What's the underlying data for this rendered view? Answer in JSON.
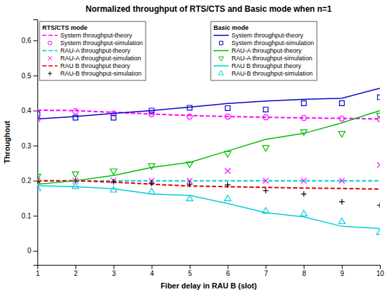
{
  "chart_data": {
    "type": "line",
    "title": "Normalized throughput of RTS/CTS and Basic mode when n=1",
    "xlabel": "Fiber delay in RAU B (slot)",
    "ylabel": "Throughout",
    "xlim": [
      1,
      10
    ],
    "ylim": [
      -0.04,
      0.66
    ],
    "xticks": [
      1,
      2,
      3,
      4,
      5,
      6,
      7,
      8,
      9,
      10
    ],
    "yticks": [
      0,
      0.1,
      0.2,
      0.3,
      0.4,
      0.5,
      0.6
    ],
    "grid": false,
    "x": [
      1,
      2,
      3,
      4,
      5,
      6,
      7,
      8,
      9,
      10
    ],
    "series": [
      {
        "name": "System throughput-theory",
        "group": "RTS/CTS mode",
        "type": "line",
        "line_style": "dashed",
        "color": "#FF00FF",
        "values": [
          0.401,
          0.4,
          0.395,
          0.39,
          0.386,
          0.383,
          0.381,
          0.379,
          0.378,
          0.376
        ]
      },
      {
        "name": "System throughput-simulation",
        "group": "RTS/CTS mode",
        "type": "scatter",
        "marker": "circle",
        "color": "#FF00FF",
        "values": [
          0.375,
          0.398,
          0.392,
          0.39,
          0.383,
          0.383,
          0.381,
          0.379,
          0.377,
          0.376
        ]
      },
      {
        "name": "RAU-A throughput-theory",
        "group": "RTS/CTS mode",
        "type": "line",
        "line_style": "dashed",
        "color": "#00CCCC",
        "values": [
          0.2,
          0.2,
          0.2,
          0.2,
          0.2,
          0.2,
          0.2,
          0.2,
          0.2,
          0.2
        ]
      },
      {
        "name": "RAU-A throughput-simulation",
        "group": "RTS/CTS mode",
        "type": "scatter",
        "marker": "x",
        "color": "#FF00FF",
        "values": [
          0.2,
          0.2,
          0.2,
          0.2,
          0.2,
          0.228,
          0.2,
          0.2,
          0.2,
          0.245
        ]
      },
      {
        "name": "RAU B throughput theory",
        "group": "RTS/CTS mode",
        "type": "line",
        "line_style": "dashed",
        "color": "#DD0000",
        "values": [
          0.2,
          0.2,
          0.196,
          0.19,
          0.185,
          0.183,
          0.181,
          0.179,
          0.178,
          0.176
        ]
      },
      {
        "name": "RAU-B throughput-simulation",
        "group": "RTS/CTS mode",
        "type": "scatter",
        "marker": "plus",
        "color": "#000000",
        "values": [
          0.195,
          0.2,
          0.197,
          0.193,
          0.19,
          0.188,
          0.172,
          0.162,
          0.14,
          0.13
        ]
      },
      {
        "name": "System throughput-theory",
        "group": "Basic mode",
        "type": "line",
        "line_style": "solid",
        "color": "#0000CC",
        "values": [
          0.376,
          0.383,
          0.392,
          0.4,
          0.41,
          0.42,
          0.427,
          0.432,
          0.435,
          0.464
        ]
      },
      {
        "name": "System throughput-simulation",
        "group": "Basic mode",
        "type": "scatter",
        "marker": "square",
        "color": "#0000CC",
        "values": [
          0.39,
          0.38,
          0.38,
          0.4,
          0.408,
          0.407,
          0.403,
          0.421,
          0.421,
          0.438
        ]
      },
      {
        "name": "RAU-A throughput-theory",
        "group": "Basic mode",
        "type": "line",
        "line_style": "solid",
        "color": "#00BB00",
        "values": [
          0.19,
          0.2,
          0.215,
          0.238,
          0.252,
          0.285,
          0.318,
          0.335,
          0.365,
          0.4
        ]
      },
      {
        "name": "RAU-A throughput-simulation",
        "group": "Basic mode",
        "type": "scatter",
        "marker": "triangle-down",
        "color": "#00BB00",
        "values": [
          0.213,
          0.22,
          0.228,
          0.243,
          0.248,
          0.278,
          0.295,
          0.34,
          0.335,
          0.387
        ]
      },
      {
        "name": "RAU B throughput theory",
        "group": "Basic mode",
        "type": "line",
        "line_style": "solid",
        "color": "#00CCDD",
        "values": [
          0.186,
          0.183,
          0.177,
          0.162,
          0.158,
          0.135,
          0.109,
          0.097,
          0.07,
          0.064
        ]
      },
      {
        "name": "RAU-B throughput-simulation",
        "group": "Basic mode",
        "type": "scatter",
        "marker": "triangle-up",
        "color": "#00CCDD",
        "values": [
          0.177,
          0.183,
          0.173,
          0.168,
          0.148,
          0.148,
          0.113,
          0.105,
          0.083,
          0.052
        ]
      }
    ]
  }
}
